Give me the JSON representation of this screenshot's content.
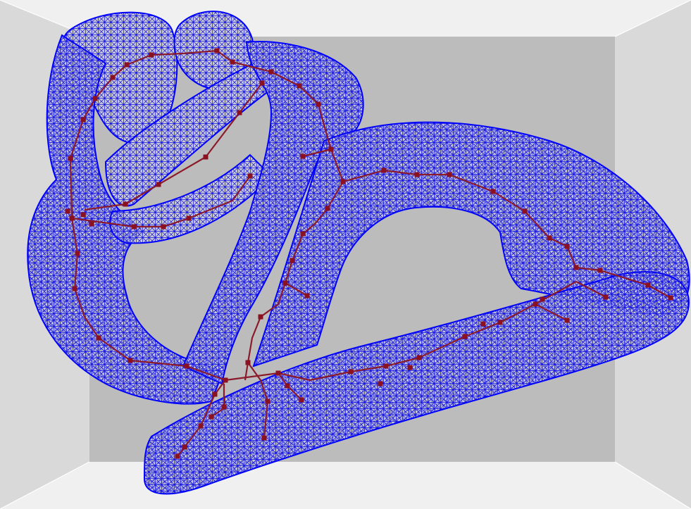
{
  "scene": {
    "room": {
      "back_wall_color": "#bcbcbc",
      "side_wall_color": "#d9d9d9",
      "floor_ceiling_color": "#f0f0f0",
      "edge_color": "#ffffff"
    },
    "mesh": {
      "fill_color": "#c9c9d4",
      "wire_color": "#1010e6",
      "outline_color": "#0000ff"
    },
    "skeleton": {
      "bone_color": "#8b1a2a",
      "joint_color": "#8b1020"
    }
  }
}
